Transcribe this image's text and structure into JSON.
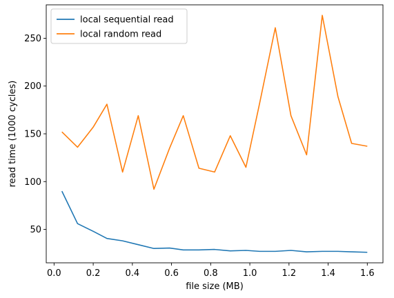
{
  "chart_data": {
    "type": "line",
    "title": "",
    "xlabel": "file size (MB)",
    "ylabel": "read time (1000 cycles)",
    "xlim": [
      -0.04,
      1.68
    ],
    "ylim": [
      15,
      285
    ],
    "xticks": [
      0.0,
      0.2,
      0.4,
      0.6,
      0.8,
      1.0,
      1.2,
      1.4,
      1.6
    ],
    "xtick_labels": [
      "0.0",
      "0.2",
      "0.4",
      "0.6",
      "0.8",
      "1.0",
      "1.2",
      "1.4",
      "1.6"
    ],
    "yticks": [
      50,
      100,
      150,
      200,
      250
    ],
    "ytick_labels": [
      "50",
      "100",
      "150",
      "200",
      "250"
    ],
    "grid": false,
    "legend_position": "top-left",
    "x": [
      0.04,
      0.12,
      0.2,
      0.27,
      0.35,
      0.43,
      0.51,
      0.59,
      0.66,
      0.74,
      0.82,
      0.9,
      0.98,
      1.05,
      1.13,
      1.21,
      1.29,
      1.37,
      1.45,
      1.52,
      1.6
    ],
    "series": [
      {
        "name": "local sequential read",
        "color": "#1f77b4",
        "values": [
          90,
          56,
          48,
          40.5,
          38,
          34,
          30,
          30.5,
          28.5,
          28.5,
          29,
          27.5,
          28,
          27,
          27,
          28,
          26.5,
          27,
          27,
          26.5,
          26
        ]
      },
      {
        "name": "local random read",
        "color": "#ff7f0e",
        "values": [
          152,
          136,
          157,
          181,
          110,
          169,
          92,
          135,
          169,
          114,
          110,
          148,
          115,
          182,
          261,
          169,
          128,
          274,
          189,
          140,
          137
        ]
      }
    ]
  }
}
